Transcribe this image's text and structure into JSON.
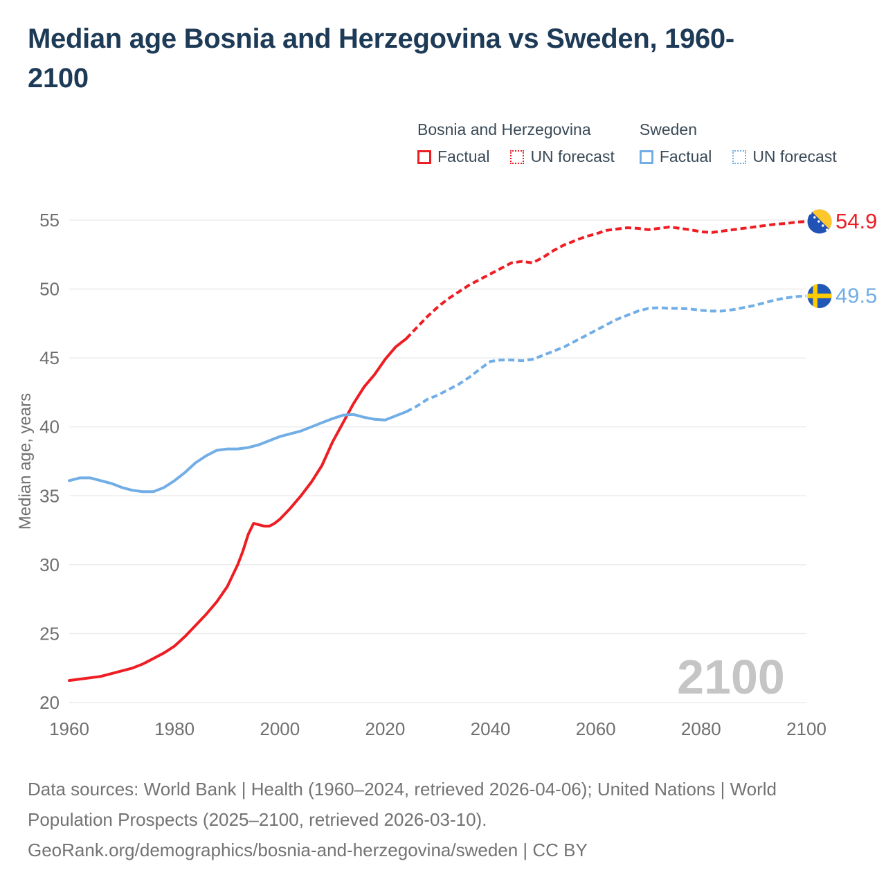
{
  "header": {
    "title": "Median age Bosnia and Herzegovina vs Sweden, 1960-2100"
  },
  "legend": {
    "groups": [
      {
        "label": "Bosnia and Herzegovina",
        "items": [
          {
            "label": "Factual",
            "style": "solid",
            "color": "#ee1d23"
          },
          {
            "label": "UN forecast",
            "style": "dotted",
            "color": "#ee1d23"
          }
        ]
      },
      {
        "label": "Sweden",
        "items": [
          {
            "label": "Factual",
            "style": "solid",
            "color": "#72aee6"
          },
          {
            "label": "UN forecast",
            "style": "dotted",
            "color": "#72aee6"
          }
        ]
      }
    ]
  },
  "chart_data": {
    "type": "line",
    "title": "Median age Bosnia and Herzegovina vs Sweden, 1960-2100",
    "xlabel": "",
    "ylabel": "Median age, years",
    "xlim": [
      1960,
      2100
    ],
    "ylim": [
      20,
      55
    ],
    "xticks": [
      1960,
      1980,
      2000,
      2020,
      2040,
      2060,
      2080,
      2100
    ],
    "yticks": [
      20,
      25,
      30,
      35,
      40,
      45,
      50,
      55
    ],
    "grid": "horizontal",
    "watermark": "2100",
    "colors": {
      "bosnia": "#ee1d23",
      "sweden": "#72aee6",
      "gridline": "#e8e8e8",
      "tick_text": "#6f6f6f",
      "watermark_text": "#c5c5c5"
    },
    "series": [
      {
        "name": "Bosnia and Herzegovina — Factual",
        "key": "bosnia-factual",
        "color": "#ee1d23",
        "style": "solid",
        "points": [
          [
            1960,
            21.6
          ],
          [
            1962,
            21.7
          ],
          [
            1964,
            21.8
          ],
          [
            1966,
            21.9
          ],
          [
            1968,
            22.1
          ],
          [
            1970,
            22.3
          ],
          [
            1972,
            22.5
          ],
          [
            1974,
            22.8
          ],
          [
            1976,
            23.2
          ],
          [
            1978,
            23.6
          ],
          [
            1980,
            24.1
          ],
          [
            1982,
            24.8
          ],
          [
            1984,
            25.6
          ],
          [
            1986,
            26.4
          ],
          [
            1988,
            27.3
          ],
          [
            1990,
            28.4
          ],
          [
            1991,
            29.2
          ],
          [
            1992,
            30.0
          ],
          [
            1993,
            31.0
          ],
          [
            1994,
            32.2
          ],
          [
            1995,
            33.0
          ],
          [
            1996,
            32.9
          ],
          [
            1997,
            32.8
          ],
          [
            1998,
            32.8
          ],
          [
            1999,
            33.0
          ],
          [
            2000,
            33.3
          ],
          [
            2002,
            34.1
          ],
          [
            2004,
            35.0
          ],
          [
            2006,
            36.0
          ],
          [
            2008,
            37.2
          ],
          [
            2010,
            38.9
          ],
          [
            2012,
            40.3
          ],
          [
            2014,
            41.7
          ],
          [
            2016,
            42.9
          ],
          [
            2018,
            43.8
          ],
          [
            2020,
            44.9
          ],
          [
            2022,
            45.8
          ],
          [
            2024,
            46.4
          ]
        ]
      },
      {
        "name": "Bosnia and Herzegovina — UN forecast",
        "key": "bosnia-forecast",
        "color": "#ee1d23",
        "style": "dashed",
        "points": [
          [
            2024,
            46.4
          ],
          [
            2026,
            47.2
          ],
          [
            2028,
            48.0
          ],
          [
            2030,
            48.7
          ],
          [
            2032,
            49.3
          ],
          [
            2034,
            49.8
          ],
          [
            2036,
            50.3
          ],
          [
            2038,
            50.7
          ],
          [
            2040,
            51.1
          ],
          [
            2042,
            51.5
          ],
          [
            2044,
            51.9
          ],
          [
            2046,
            52.0
          ],
          [
            2048,
            51.9
          ],
          [
            2050,
            52.3
          ],
          [
            2052,
            52.8
          ],
          [
            2054,
            53.2
          ],
          [
            2056,
            53.5
          ],
          [
            2058,
            53.8
          ],
          [
            2060,
            54.0
          ],
          [
            2062,
            54.25
          ],
          [
            2064,
            54.35
          ],
          [
            2066,
            54.45
          ],
          [
            2068,
            54.4
          ],
          [
            2070,
            54.3
          ],
          [
            2072,
            54.4
          ],
          [
            2074,
            54.5
          ],
          [
            2076,
            54.4
          ],
          [
            2078,
            54.3
          ],
          [
            2080,
            54.15
          ],
          [
            2082,
            54.1
          ],
          [
            2084,
            54.2
          ],
          [
            2086,
            54.3
          ],
          [
            2088,
            54.4
          ],
          [
            2090,
            54.5
          ],
          [
            2092,
            54.6
          ],
          [
            2094,
            54.7
          ],
          [
            2096,
            54.75
          ],
          [
            2098,
            54.85
          ],
          [
            2100,
            54.9
          ]
        ]
      },
      {
        "name": "Sweden — Factual",
        "key": "sweden-factual",
        "color": "#72aee6",
        "style": "solid",
        "points": [
          [
            1960,
            36.1
          ],
          [
            1962,
            36.3
          ],
          [
            1964,
            36.3
          ],
          [
            1966,
            36.1
          ],
          [
            1968,
            35.9
          ],
          [
            1970,
            35.6
          ],
          [
            1972,
            35.4
          ],
          [
            1974,
            35.3
          ],
          [
            1976,
            35.3
          ],
          [
            1978,
            35.6
          ],
          [
            1980,
            36.1
          ],
          [
            1982,
            36.7
          ],
          [
            1984,
            37.4
          ],
          [
            1986,
            37.9
          ],
          [
            1988,
            38.3
          ],
          [
            1990,
            38.4
          ],
          [
            1992,
            38.4
          ],
          [
            1994,
            38.5
          ],
          [
            1996,
            38.7
          ],
          [
            1998,
            39.0
          ],
          [
            2000,
            39.3
          ],
          [
            2002,
            39.5
          ],
          [
            2004,
            39.7
          ],
          [
            2006,
            40.0
          ],
          [
            2008,
            40.3
          ],
          [
            2010,
            40.6
          ],
          [
            2012,
            40.85
          ],
          [
            2014,
            40.9
          ],
          [
            2016,
            40.7
          ],
          [
            2018,
            40.55
          ],
          [
            2020,
            40.5
          ],
          [
            2022,
            40.8
          ],
          [
            2024,
            41.1
          ]
        ]
      },
      {
        "name": "Sweden — UN forecast",
        "key": "sweden-forecast",
        "color": "#72aee6",
        "style": "dashed",
        "points": [
          [
            2024,
            41.1
          ],
          [
            2026,
            41.5
          ],
          [
            2028,
            42.0
          ],
          [
            2030,
            42.3
          ],
          [
            2032,
            42.7
          ],
          [
            2034,
            43.1
          ],
          [
            2036,
            43.6
          ],
          [
            2038,
            44.2
          ],
          [
            2040,
            44.75
          ],
          [
            2042,
            44.85
          ],
          [
            2044,
            44.85
          ],
          [
            2046,
            44.8
          ],
          [
            2048,
            44.9
          ],
          [
            2050,
            45.2
          ],
          [
            2052,
            45.5
          ],
          [
            2054,
            45.8
          ],
          [
            2056,
            46.2
          ],
          [
            2058,
            46.6
          ],
          [
            2060,
            47.0
          ],
          [
            2062,
            47.4
          ],
          [
            2064,
            47.8
          ],
          [
            2066,
            48.1
          ],
          [
            2068,
            48.4
          ],
          [
            2070,
            48.6
          ],
          [
            2072,
            48.65
          ],
          [
            2074,
            48.6
          ],
          [
            2076,
            48.6
          ],
          [
            2078,
            48.55
          ],
          [
            2080,
            48.45
          ],
          [
            2082,
            48.4
          ],
          [
            2084,
            48.4
          ],
          [
            2086,
            48.5
          ],
          [
            2088,
            48.65
          ],
          [
            2090,
            48.8
          ],
          [
            2092,
            49.0
          ],
          [
            2094,
            49.2
          ],
          [
            2096,
            49.35
          ],
          [
            2098,
            49.45
          ],
          [
            2100,
            49.5
          ]
        ]
      }
    ],
    "end_labels": [
      {
        "key": "bosnia",
        "label": "54.9",
        "value": 54.9,
        "color": "#ee1d23",
        "flag": "bosnia-flag-icon"
      },
      {
        "key": "sweden",
        "label": "49.5",
        "value": 49.5,
        "color": "#72aee6",
        "flag": "sweden-flag-icon"
      }
    ],
    "legend_position": "top-right"
  },
  "footer": {
    "sources": "Data sources: World Bank | Health (1960–2024, retrieved 2026-04-06); United Nations | World Population Prospects (2025–2100, retrieved 2026-03-10).",
    "attribution": "GeoRank.org/demographics/bosnia-and-herzegovina/sweden | CC BY"
  }
}
